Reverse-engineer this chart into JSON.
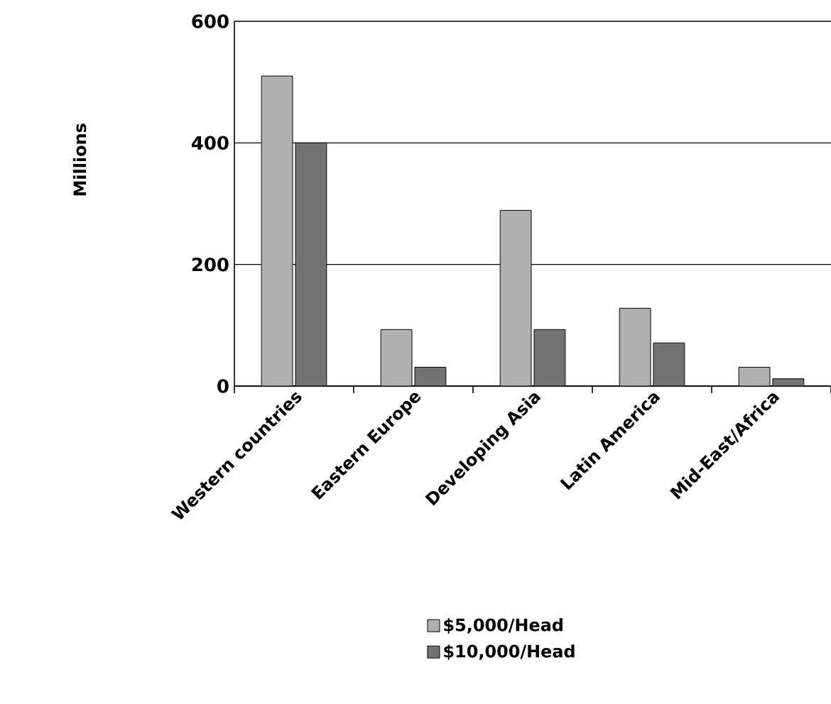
{
  "chart_data": {
    "type": "bar",
    "ylabel": "Millions",
    "categories": [
      "Western countries",
      "Eastern Europe",
      "Developing Asia",
      "Latin America",
      "Mid-East/Africa"
    ],
    "series": [
      {
        "name": "$5,000/Head",
        "color": "#b0b0b0",
        "values": [
          510,
          93,
          289,
          128,
          31
        ]
      },
      {
        "name": "$10,000/Head",
        "color": "#737373",
        "values": [
          400,
          31,
          93,
          71,
          12
        ]
      }
    ],
    "ylim": [
      0,
      600
    ],
    "yticks": [
      0,
      200,
      400,
      600
    ],
    "grid": "y",
    "legend": "bottom"
  }
}
